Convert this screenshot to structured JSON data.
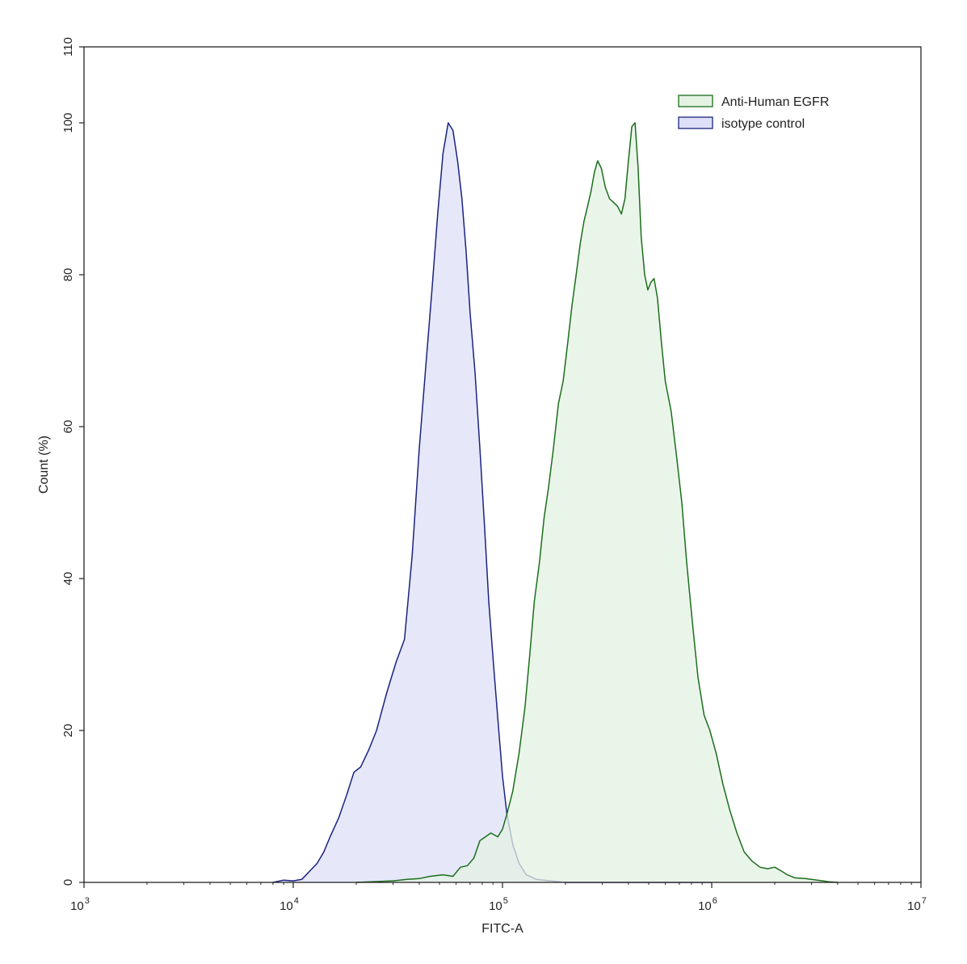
{
  "chart_data": {
    "type": "area",
    "xlabel": "FITC-A",
    "ylabel": "Count  (%)",
    "xscale": "log",
    "xlim": [
      1000,
      10000000
    ],
    "ylim": [
      0,
      110
    ],
    "grid": false,
    "legend_position": "top-right",
    "x_ticks": [
      {
        "value": 1000,
        "base": "10",
        "exp": "3"
      },
      {
        "value": 10000,
        "base": "10",
        "exp": "4"
      },
      {
        "value": 100000,
        "base": "10",
        "exp": "5"
      },
      {
        "value": 1000000,
        "base": "10",
        "exp": "6"
      },
      {
        "value": 10000000,
        "base": "10",
        "exp": "7"
      }
    ],
    "y_ticks": [
      {
        "value": 0,
        "label": "0"
      },
      {
        "value": 20,
        "label": "20"
      },
      {
        "value": 40,
        "label": "40"
      },
      {
        "value": 60,
        "label": "60"
      },
      {
        "value": 80,
        "label": "80"
      },
      {
        "value": 100,
        "label": "100"
      },
      {
        "value": 110,
        "label": "110"
      }
    ],
    "series": [
      {
        "name": "isotype control",
        "stroke": "#1a237e",
        "fill": "#dde0f8",
        "points": [
          [
            8000,
            0
          ],
          [
            9000,
            0.3
          ],
          [
            10000,
            0.2
          ],
          [
            11000,
            0.4
          ],
          [
            12000,
            1.5
          ],
          [
            13000,
            2.5
          ],
          [
            14000,
            4
          ],
          [
            15000,
            6
          ],
          [
            16500,
            8.5
          ],
          [
            18000,
            11.5
          ],
          [
            19500,
            14.5
          ],
          [
            21000,
            15.2
          ],
          [
            23000,
            17.5
          ],
          [
            25000,
            20
          ],
          [
            28000,
            25
          ],
          [
            31000,
            29
          ],
          [
            34000,
            32
          ],
          [
            37000,
            43
          ],
          [
            40000,
            57
          ],
          [
            43000,
            68
          ],
          [
            46000,
            78
          ],
          [
            49000,
            88
          ],
          [
            52000,
            96
          ],
          [
            55000,
            100
          ],
          [
            58000,
            99
          ],
          [
            61000,
            95
          ],
          [
            64000,
            90
          ],
          [
            67000,
            83
          ],
          [
            70000,
            75
          ],
          [
            74000,
            67
          ],
          [
            78000,
            57
          ],
          [
            82000,
            47
          ],
          [
            86000,
            37
          ],
          [
            91000,
            28
          ],
          [
            96000,
            20
          ],
          [
            100000,
            14
          ],
          [
            105000,
            9
          ],
          [
            112000,
            5
          ],
          [
            120000,
            2.5
          ],
          [
            130000,
            1
          ],
          [
            145000,
            0.4
          ],
          [
            170000,
            0.2
          ],
          [
            200000,
            0
          ],
          [
            400000,
            0
          ],
          [
            1000000,
            0
          ]
        ]
      },
      {
        "name": "Anti-Human EGFR",
        "stroke": "#1b6e1b",
        "fill": "#e3f2e3",
        "points": [
          [
            20000,
            0
          ],
          [
            30000,
            0.2
          ],
          [
            35000,
            0.4
          ],
          [
            40000,
            0.5
          ],
          [
            45000,
            0.8
          ],
          [
            52000,
            1
          ],
          [
            58000,
            0.8
          ],
          [
            63000,
            2
          ],
          [
            68000,
            2.2
          ],
          [
            73000,
            3.2
          ],
          [
            78000,
            5.5
          ],
          [
            83000,
            6
          ],
          [
            88000,
            6.5
          ],
          [
            95000,
            6
          ],
          [
            100000,
            7
          ],
          [
            105000,
            9
          ],
          [
            112000,
            12
          ],
          [
            120000,
            17
          ],
          [
            128000,
            23
          ],
          [
            135000,
            30
          ],
          [
            142000,
            37
          ],
          [
            150000,
            42
          ],
          [
            158000,
            48
          ],
          [
            166000,
            52
          ],
          [
            175000,
            57
          ],
          [
            185000,
            63
          ],
          [
            195000,
            66
          ],
          [
            205000,
            71
          ],
          [
            215000,
            76
          ],
          [
            225000,
            80
          ],
          [
            235000,
            84
          ],
          [
            245000,
            87
          ],
          [
            255000,
            89
          ],
          [
            265000,
            91
          ],
          [
            275000,
            93.5
          ],
          [
            285000,
            95
          ],
          [
            297000,
            94
          ],
          [
            310000,
            91.5
          ],
          [
            325000,
            90
          ],
          [
            340000,
            89.5
          ],
          [
            355000,
            89
          ],
          [
            370000,
            88
          ],
          [
            385000,
            90
          ],
          [
            400000,
            95
          ],
          [
            415000,
            99.5
          ],
          [
            430000,
            100
          ],
          [
            445000,
            94
          ],
          [
            460000,
            85
          ],
          [
            478000,
            80
          ],
          [
            495000,
            78
          ],
          [
            512000,
            79
          ],
          [
            530000,
            79.5
          ],
          [
            550000,
            77
          ],
          [
            575000,
            71
          ],
          [
            600000,
            66
          ],
          [
            640000,
            62
          ],
          [
            680000,
            56
          ],
          [
            720000,
            50
          ],
          [
            760000,
            42
          ],
          [
            810000,
            34
          ],
          [
            860000,
            27
          ],
          [
            920000,
            22
          ],
          [
            980000,
            20
          ],
          [
            1050000,
            17
          ],
          [
            1130000,
            13
          ],
          [
            1220000,
            9.5
          ],
          [
            1320000,
            6.5
          ],
          [
            1430000,
            4
          ],
          [
            1560000,
            2.8
          ],
          [
            1700000,
            2
          ],
          [
            1850000,
            1.8
          ],
          [
            2000000,
            2
          ],
          [
            2150000,
            1.5
          ],
          [
            2300000,
            1
          ],
          [
            2500000,
            0.6
          ],
          [
            2800000,
            0.5
          ],
          [
            3200000,
            0.3
          ],
          [
            3600000,
            0.1
          ],
          [
            4000000,
            0
          ]
        ]
      }
    ],
    "legend": [
      {
        "label": "Anti-Human EGFR",
        "stroke": "#1b6e1b",
        "fill": "#e3f2e3"
      },
      {
        "label": "isotype control",
        "stroke": "#1a237e",
        "fill": "#dde0f8"
      }
    ]
  }
}
